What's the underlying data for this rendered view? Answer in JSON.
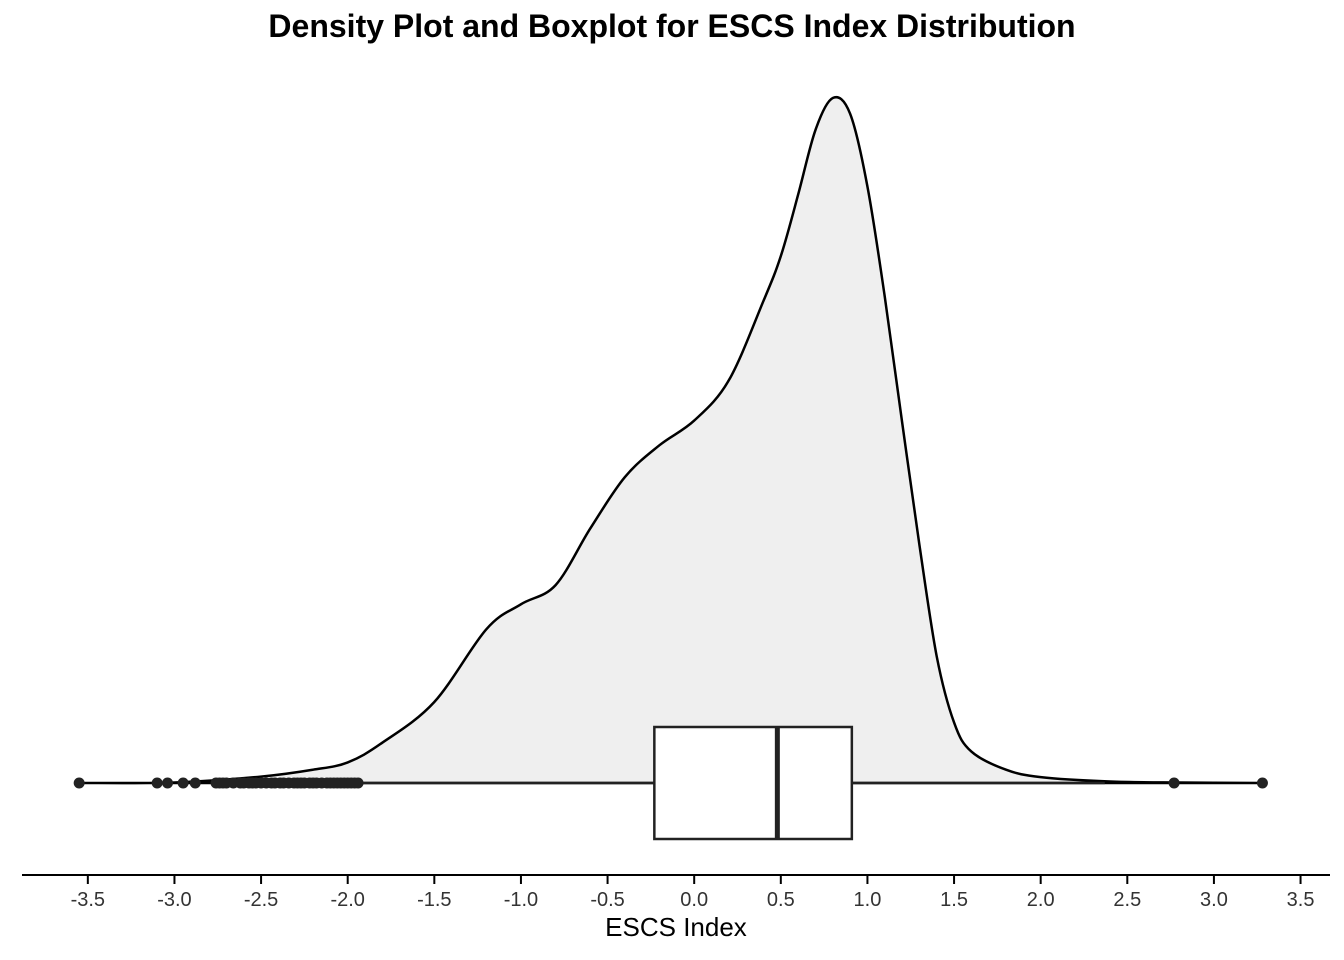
{
  "chart_data": {
    "type": "density_boxplot",
    "title": "Density Plot and Boxplot for ESCS Index Distribution",
    "xlabel": "ESCS Index",
    "ylabel": "",
    "xlim": [
      -3.88,
      3.67
    ],
    "x_ticks": [
      -3.5,
      -3.0,
      -2.5,
      -2.0,
      -1.5,
      -1.0,
      -0.5,
      0.0,
      0.5,
      1.0,
      1.5,
      2.0,
      2.5,
      3.0,
      3.5
    ],
    "x_tick_labels": [
      "-3.5",
      "-3.0",
      "-2.5",
      "-2.0",
      "-1.5",
      "-1.0",
      "-0.5",
      "0.0",
      "0.5",
      "1.0",
      "1.5",
      "2.0",
      "2.5",
      "3.0",
      "3.5"
    ],
    "grid": false,
    "density": {
      "fill": "#efefef",
      "stroke": "#000000",
      "points": [
        [
          -3.55,
          0.0
        ],
        [
          -3.0,
          0.001
        ],
        [
          -2.5,
          0.013
        ],
        [
          -2.2,
          0.027
        ],
        [
          -2.0,
          0.042
        ],
        [
          -1.8,
          0.082
        ],
        [
          -1.5,
          0.165
        ],
        [
          -1.2,
          0.313
        ],
        [
          -1.0,
          0.364
        ],
        [
          -0.8,
          0.403
        ],
        [
          -0.6,
          0.518
        ],
        [
          -0.4,
          0.623
        ],
        [
          -0.2,
          0.688
        ],
        [
          0.0,
          0.738
        ],
        [
          0.2,
          0.82
        ],
        [
          0.4,
          0.982
        ],
        [
          0.5,
          1.073
        ],
        [
          0.6,
          1.198
        ],
        [
          0.7,
          1.33
        ],
        [
          0.8,
          1.395
        ],
        [
          0.9,
          1.363
        ],
        [
          1.0,
          1.215
        ],
        [
          1.1,
          0.99
        ],
        [
          1.2,
          0.735
        ],
        [
          1.3,
          0.485
        ],
        [
          1.4,
          0.258
        ],
        [
          1.5,
          0.123
        ],
        [
          1.6,
          0.064
        ],
        [
          1.8,
          0.027
        ],
        [
          2.0,
          0.012
        ],
        [
          2.4,
          0.003
        ],
        [
          2.8,
          0.001
        ],
        [
          3.28,
          0.0
        ]
      ]
    },
    "boxplot": {
      "lower_whisker": -1.94,
      "q1": -0.23,
      "median": 0.48,
      "q3": 0.91,
      "upper_whisker": 2.37,
      "fill": "#ffffff",
      "stroke": "#222222",
      "outliers": [
        -3.55,
        -3.1,
        -3.04,
        -2.95,
        -2.88,
        -2.76,
        -2.74,
        -2.72,
        -2.7,
        -2.66,
        -2.62,
        -2.6,
        -2.57,
        -2.55,
        -2.53,
        -2.5,
        -2.47,
        -2.44,
        -2.42,
        -2.39,
        -2.37,
        -2.34,
        -2.31,
        -2.29,
        -2.27,
        -2.25,
        -2.22,
        -2.2,
        -2.18,
        -2.15,
        -2.12,
        -2.1,
        -2.08,
        -2.06,
        -2.04,
        -2.02,
        -2.0,
        -1.98,
        -1.96,
        -1.94,
        2.77,
        3.28
      ]
    }
  }
}
